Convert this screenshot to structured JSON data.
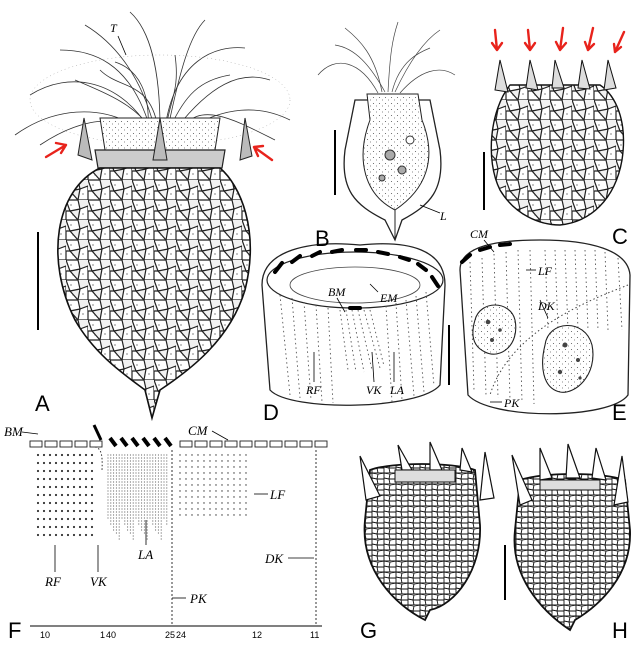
{
  "panels": [
    "A",
    "B",
    "C",
    "D",
    "E",
    "F",
    "G",
    "H"
  ],
  "labels": {
    "A": {
      "tentacle": "T"
    },
    "B": {
      "lorica": "L"
    },
    "D": {
      "BM": "BM",
      "EM": "EM",
      "RF": "RF",
      "VK": "VK",
      "LA": "LA"
    },
    "E": {
      "CM": "CM",
      "LF": "LF",
      "DK": "DK",
      "PK": "PK"
    },
    "F": {
      "BM": "BM",
      "CM": "CM",
      "LF": "LF",
      "RF": "RF",
      "VK": "VK",
      "LA": "LA",
      "DK": "DK",
      "PK": "PK"
    }
  },
  "kinety_counts": [
    "10",
    "1",
    "40",
    "25",
    "24",
    "12",
    "11"
  ],
  "colors": {
    "ink": "#000000",
    "arrow": "#e8231c",
    "paper": "#ffffff",
    "stipple": "#555555"
  }
}
